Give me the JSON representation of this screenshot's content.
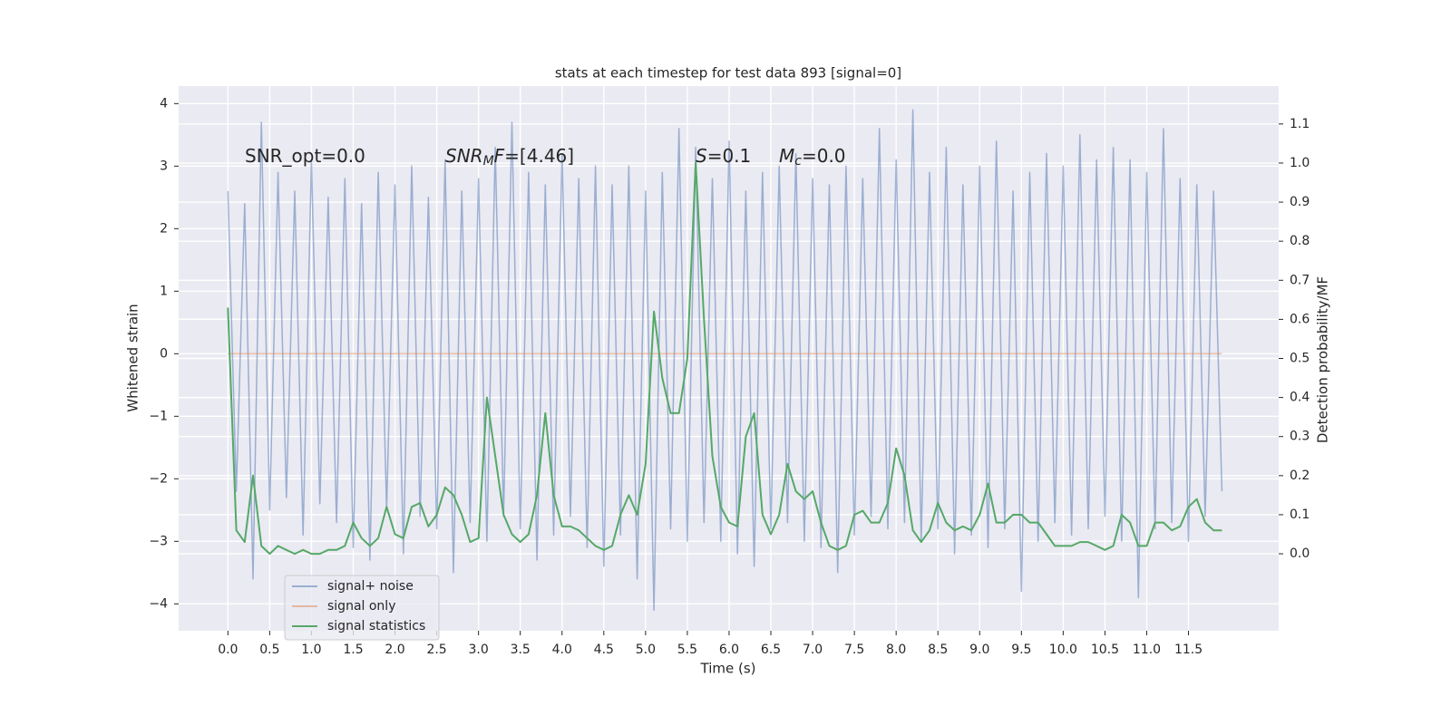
{
  "chart_data": {
    "type": "line",
    "title": "stats at each timestep for test data 893 [signal=0]",
    "xlabel": "Time (s)",
    "ylabel": "Whitened strain",
    "y2label": "Detection probability/MF",
    "annotations": [
      [
        {
          "t": "SNR_opt=0.0"
        }
      ],
      [
        {
          "t": "SNR",
          "italic": true
        },
        {
          "t": "M",
          "italic": true,
          "sub": true
        },
        {
          "t": "F",
          "italic": true
        },
        {
          "t": "=[4.46]"
        }
      ],
      [
        {
          "t": "S",
          "italic": true
        },
        {
          "t": "=0.1"
        }
      ],
      [
        {
          "t": "M",
          "italic": true
        },
        {
          "t": "c",
          "italic": true,
          "sub": true
        },
        {
          "t": "=0.0"
        }
      ]
    ],
    "x": [
      0,
      0.1,
      0.2,
      0.3,
      0.4,
      0.5,
      0.6,
      0.7,
      0.8,
      0.9,
      1,
      1.1,
      1.2,
      1.3,
      1.4,
      1.5,
      1.6,
      1.7,
      1.8,
      1.9,
      2,
      2.1,
      2.2,
      2.3,
      2.4,
      2.5,
      2.6,
      2.7,
      2.8,
      2.9,
      3,
      3.1,
      3.2,
      3.3,
      3.4,
      3.5,
      3.6,
      3.7,
      3.8,
      3.9,
      4,
      4.1,
      4.2,
      4.3,
      4.4,
      4.5,
      4.6,
      4.7,
      4.8,
      4.9,
      5,
      5.1,
      5.2,
      5.3,
      5.4,
      5.5,
      5.6,
      5.7,
      5.8,
      5.9,
      6,
      6.1,
      6.2,
      6.3,
      6.4,
      6.5,
      6.6,
      6.7,
      6.8,
      6.9,
      7,
      7.1,
      7.2,
      7.3,
      7.4,
      7.5,
      7.6,
      7.7,
      7.8,
      7.9,
      8,
      8.1,
      8.2,
      8.3,
      8.4,
      8.5,
      8.6,
      8.7,
      8.8,
      8.9,
      9,
      9.1,
      9.2,
      9.3,
      9.4,
      9.5,
      9.6,
      9.7,
      9.8,
      9.9,
      10,
      10.1,
      10.2,
      10.3,
      10.4,
      10.5,
      10.6,
      10.7,
      10.8,
      10.9,
      11,
      11.1,
      11.2,
      11.3,
      11.4,
      11.5,
      11.6,
      11.7,
      11.8,
      11.9
    ],
    "series": [
      {
        "name": "signal+ noise",
        "color": "#4c72b0",
        "alpha": 0.5,
        "axis": "y",
        "values": [
          2.6,
          -2.2,
          2.4,
          -3.6,
          3.7,
          -2.5,
          2.9,
          -2.3,
          2.6,
          -2.9,
          3.1,
          -2.4,
          2.5,
          -2.7,
          2.8,
          -3.1,
          2.4,
          -3.3,
          2.9,
          -2.5,
          2.7,
          -3.2,
          3.0,
          -2.6,
          2.5,
          -2.8,
          3.1,
          -3.5,
          2.6,
          -2.7,
          2.8,
          -3.0,
          3.3,
          -2.6,
          3.7,
          -2.8,
          2.9,
          -3.3,
          2.7,
          -2.9,
          3.2,
          -2.6,
          2.8,
          -3.1,
          3.0,
          -3.4,
          2.7,
          -2.9,
          3.0,
          -3.6,
          2.6,
          -4.1,
          2.9,
          -2.8,
          3.6,
          -3.0,
          3.3,
          -2.7,
          2.8,
          -3.0,
          3.4,
          -3.2,
          2.6,
          -3.4,
          2.9,
          -2.8,
          3.0,
          -2.7,
          3.2,
          -3.0,
          2.8,
          -3.1,
          2.7,
          -3.5,
          3.0,
          -2.9,
          2.8,
          -2.6,
          3.6,
          -2.8,
          3.1,
          -2.7,
          3.9,
          -3.0,
          2.9,
          -2.8,
          3.3,
          -3.2,
          2.7,
          -2.9,
          3.0,
          -3.1,
          3.4,
          -2.8,
          2.6,
          -3.8,
          2.9,
          -3.0,
          3.2,
          -2.7,
          3.0,
          -2.9,
          3.5,
          -2.8,
          3.1,
          -2.6,
          3.3,
          -3.0,
          3.1,
          -3.9,
          2.9,
          -2.8,
          3.6,
          -2.7,
          2.8,
          -3.0,
          2.7,
          -2.6,
          2.6,
          -2.2
        ]
      },
      {
        "name": "signal only",
        "color": "#dd8452",
        "alpha": 0.5,
        "axis": "y",
        "values": [
          0,
          0,
          0,
          0,
          0,
          0,
          0,
          0,
          0,
          0,
          0,
          0,
          0,
          0,
          0,
          0,
          0,
          0,
          0,
          0,
          0,
          0,
          0,
          0,
          0,
          0,
          0,
          0,
          0,
          0,
          0,
          0,
          0,
          0,
          0,
          0,
          0,
          0,
          0,
          0,
          0,
          0,
          0,
          0,
          0,
          0,
          0,
          0,
          0,
          0,
          0,
          0,
          0,
          0,
          0,
          0,
          0,
          0,
          0,
          0,
          0,
          0,
          0,
          0,
          0,
          0,
          0,
          0,
          0,
          0,
          0,
          0,
          0,
          0,
          0,
          0,
          0,
          0,
          0,
          0,
          0,
          0,
          0,
          0,
          0,
          0,
          0,
          0,
          0,
          0,
          0,
          0,
          0,
          0,
          0,
          0,
          0,
          0,
          0,
          0,
          0,
          0,
          0,
          0,
          0,
          0,
          0,
          0,
          0,
          0,
          0,
          0,
          0,
          0,
          0,
          0,
          0,
          0,
          0,
          0
        ]
      },
      {
        "name": "signal statistics",
        "color": "#55a868",
        "alpha": 1,
        "axis": "y2",
        "values": [
          0.63,
          0.06,
          0.03,
          0.2,
          0.02,
          0,
          0.02,
          0.01,
          0,
          0.01,
          0,
          0,
          0.01,
          0.01,
          0.02,
          0.08,
          0.04,
          0.02,
          0.04,
          0.12,
          0.05,
          0.04,
          0.12,
          0.13,
          0.07,
          0.1,
          0.17,
          0.15,
          0.1,
          0.03,
          0.04,
          0.4,
          0.25,
          0.1,
          0.05,
          0.03,
          0.05,
          0.15,
          0.36,
          0.15,
          0.07,
          0.07,
          0.06,
          0.04,
          0.02,
          0.01,
          0.02,
          0.1,
          0.15,
          0.1,
          0.23,
          0.62,
          0.45,
          0.36,
          0.36,
          0.5,
          1.0,
          0.6,
          0.25,
          0.12,
          0.08,
          0.07,
          0.3,
          0.36,
          0.1,
          0.05,
          0.1,
          0.23,
          0.16,
          0.14,
          0.16,
          0.08,
          0.02,
          0.01,
          0.02,
          0.1,
          0.11,
          0.08,
          0.08,
          0.13,
          0.27,
          0.2,
          0.06,
          0.03,
          0.06,
          0.13,
          0.08,
          0.06,
          0.07,
          0.06,
          0.1,
          0.18,
          0.08,
          0.08,
          0.1,
          0.1,
          0.08,
          0.08,
          0.05,
          0.02,
          0.02,
          0.02,
          0.03,
          0.03,
          0.02,
          0.01,
          0.02,
          0.1,
          0.08,
          0.02,
          0.02,
          0.08,
          0.08,
          0.06,
          0.07,
          0.12,
          0.14,
          0.08,
          0.06,
          0.06
        ]
      }
    ],
    "xlim": [
      -0.59,
      12.58
    ],
    "ylim": [
      -4.43,
      4.28
    ],
    "y2lim": [
      -0.197,
      1.197
    ],
    "xticks": [
      {
        "value": 0,
        "label": "0.0"
      },
      {
        "value": 0.5,
        "label": "0.5"
      },
      {
        "value": 1,
        "label": "1.0"
      },
      {
        "value": 1.5,
        "label": "1.5"
      },
      {
        "value": 2,
        "label": "2.0"
      },
      {
        "value": 2.5,
        "label": "2.5"
      },
      {
        "value": 3,
        "label": "3.0"
      },
      {
        "value": 3.5,
        "label": "3.5"
      },
      {
        "value": 4,
        "label": "4.0"
      },
      {
        "value": 4.5,
        "label": "4.5"
      },
      {
        "value": 5,
        "label": "5.0"
      },
      {
        "value": 5.5,
        "label": "5.5"
      },
      {
        "value": 6,
        "label": "6.0"
      },
      {
        "value": 6.5,
        "label": "6.5"
      },
      {
        "value": 7,
        "label": "7.0"
      },
      {
        "value": 7.5,
        "label": "7.5"
      },
      {
        "value": 8,
        "label": "8.0"
      },
      {
        "value": 8.5,
        "label": "8.5"
      },
      {
        "value": 9,
        "label": "9.0"
      },
      {
        "value": 9.5,
        "label": "9.5"
      },
      {
        "value": 10,
        "label": "10.0"
      },
      {
        "value": 10.5,
        "label": "10.5"
      },
      {
        "value": 11,
        "label": "11.0"
      },
      {
        "value": 11.5,
        "label": "11.5"
      }
    ],
    "yticks": [
      {
        "value": -4,
        "label": "−4"
      },
      {
        "value": -3,
        "label": "−3"
      },
      {
        "value": -2,
        "label": "−2"
      },
      {
        "value": -1,
        "label": "−1"
      },
      0,
      1,
      2,
      3,
      4
    ],
    "y2ticks": [
      {
        "value": 0,
        "label": "0.0"
      },
      {
        "value": 0.1,
        "label": "0.1"
      },
      {
        "value": 0.2,
        "label": "0.2"
      },
      {
        "value": 0.3,
        "label": "0.3"
      },
      {
        "value": 0.4,
        "label": "0.4"
      },
      {
        "value": 0.5,
        "label": "0.5"
      },
      {
        "value": 0.6,
        "label": "0.6"
      },
      {
        "value": 0.7,
        "label": "0.7"
      },
      {
        "value": 0.8,
        "label": "0.8"
      },
      {
        "value": 0.9,
        "label": "0.9"
      },
      {
        "value": 1,
        "label": "1.0"
      },
      {
        "value": 1.1,
        "label": "1.1"
      }
    ],
    "grid": true,
    "legend": "lower left"
  }
}
